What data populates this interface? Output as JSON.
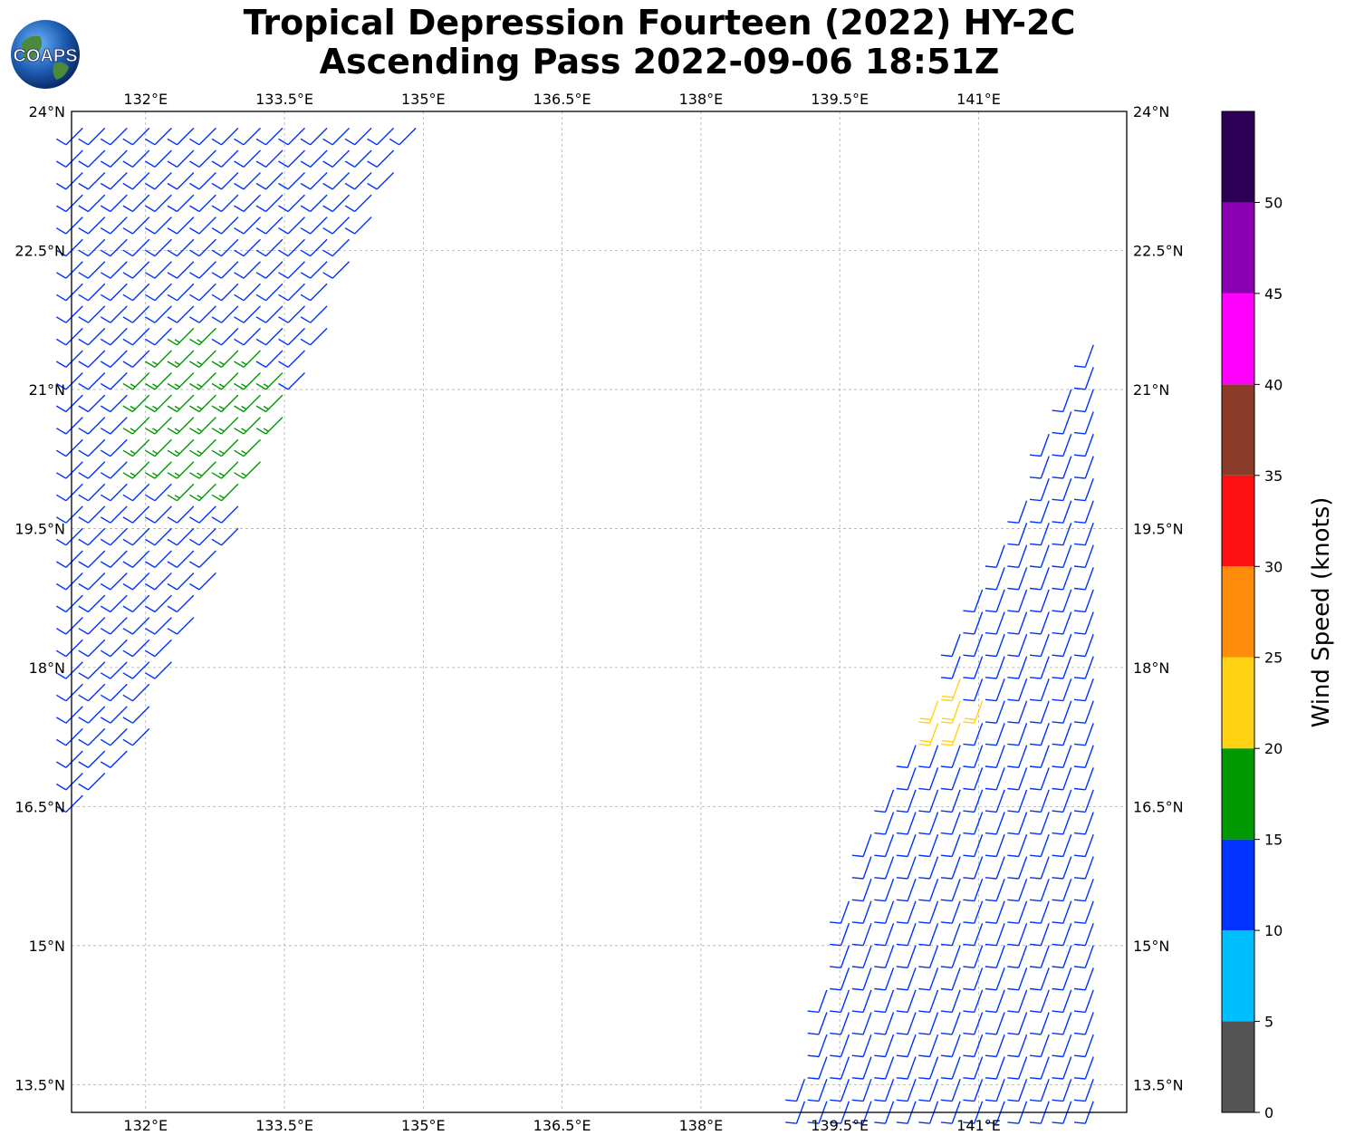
{
  "title": {
    "line1": "Tropical Depression Fourteen (2022) HY-2C",
    "line2": "Ascending Pass 2022-09-06 18:51Z"
  },
  "logo": {
    "text": "COAPS",
    "icon": "globe-icon"
  },
  "map": {
    "lon_range": [
      131.2,
      142.6
    ],
    "lat_range": [
      13.2,
      24.0
    ],
    "lon_ticks": [
      {
        "value": 132.0,
        "label": "132°E"
      },
      {
        "value": 133.5,
        "label": "133.5°E"
      },
      {
        "value": 135.0,
        "label": "135°E"
      },
      {
        "value": 136.5,
        "label": "136.5°E"
      },
      {
        "value": 138.0,
        "label": "138°E"
      },
      {
        "value": 139.5,
        "label": "139.5°E"
      },
      {
        "value": 141.0,
        "label": "141°E"
      }
    ],
    "lat_ticks": [
      {
        "value": 24.0,
        "label": "24°N"
      },
      {
        "value": 22.5,
        "label": "22.5°N"
      },
      {
        "value": 21.0,
        "label": "21°N"
      },
      {
        "value": 19.5,
        "label": "19.5°N"
      },
      {
        "value": 18.0,
        "label": "18°N"
      },
      {
        "value": 16.5,
        "label": "16.5°N"
      },
      {
        "value": 15.0,
        "label": "15°N"
      },
      {
        "value": 13.5,
        "label": "13.5°N"
      }
    ],
    "gridlines": true
  },
  "colorbar": {
    "label": "Wind Speed (knots)",
    "bins": [
      {
        "min": 0,
        "max": 5,
        "color": "#555555"
      },
      {
        "min": 5,
        "max": 10,
        "color": "#00bfff"
      },
      {
        "min": 10,
        "max": 15,
        "color": "#0033ff"
      },
      {
        "min": 15,
        "max": 20,
        "color": "#009900"
      },
      {
        "min": 20,
        "max": 25,
        "color": "#ffd214"
      },
      {
        "min": 25,
        "max": 30,
        "color": "#ff8c0a"
      },
      {
        "min": 30,
        "max": 35,
        "color": "#ff1010"
      },
      {
        "min": 35,
        "max": 40,
        "color": "#8b3c28"
      },
      {
        "min": 40,
        "max": 45,
        "color": "#ff00ff"
      },
      {
        "min": 45,
        "max": 50,
        "color": "#8c00b4"
      },
      {
        "min": 50,
        "max": 55,
        "color": "#2d0055"
      }
    ],
    "tick_labels": [
      "0",
      "5",
      "10",
      "15",
      "20",
      "25",
      "30",
      "35",
      "40",
      "45",
      "50"
    ]
  },
  "swaths": [
    {
      "name": "west-swath",
      "corners": [
        [
          131.2,
          16.5
        ],
        [
          131.2,
          24.0
        ],
        [
          135.0,
          24.0
        ],
        [
          132.0,
          17.2
        ]
      ],
      "wind_dir_from_deg": 225,
      "speed_kt": 13,
      "core": {
        "lon": 132.7,
        "lat": 20.8,
        "radius_deg": 0.9,
        "speed_kt": 17
      }
    },
    {
      "name": "east-swath",
      "corners": [
        [
          139.0,
          13.2
        ],
        [
          142.4,
          13.2
        ],
        [
          142.4,
          22.0
        ],
        [
          139.6,
          15.7
        ]
      ],
      "wind_dir_from_deg": 200,
      "speed_kt": 12,
      "core": {
        "lon": 140.7,
        "lat": 17.6,
        "radius_deg": 0.35,
        "speed_kt": 21
      }
    }
  ]
}
